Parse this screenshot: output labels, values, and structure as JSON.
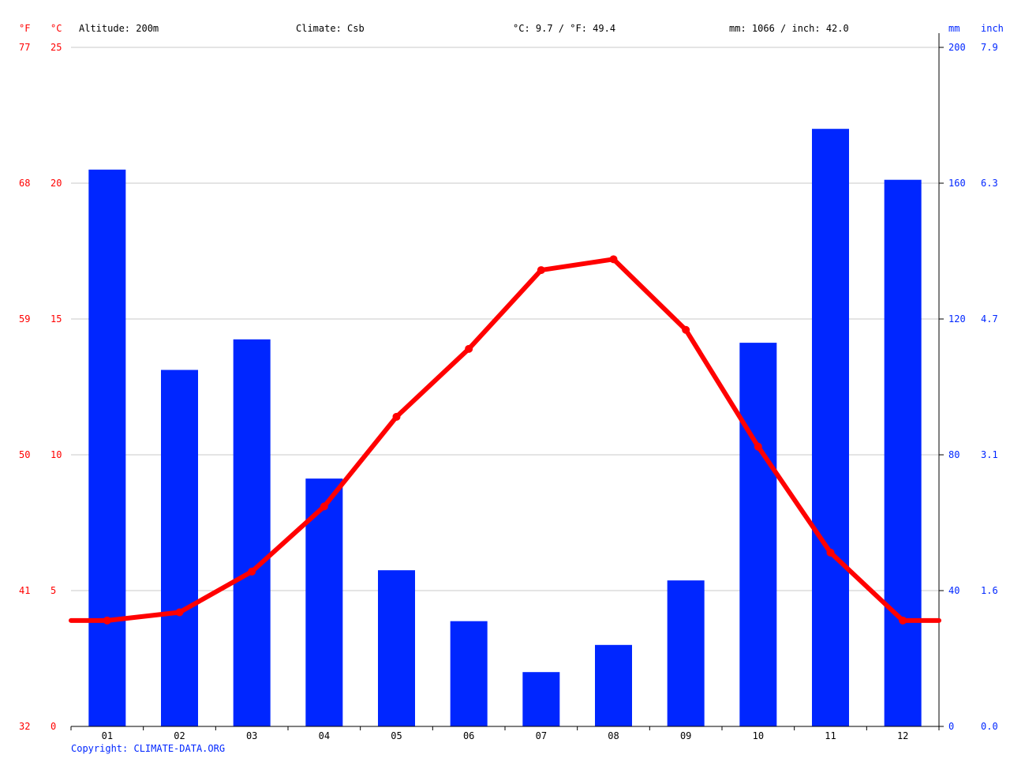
{
  "header": {
    "f_unit": "°F",
    "c_unit": "°C",
    "altitude": "Altitude: 200m",
    "climate": "Climate: Csb",
    "temp_avg": "°C: 9.7 / °F: 49.4",
    "precip_total": "mm: 1066 / inch: 42.0",
    "mm_unit": "mm",
    "inch_unit": "inch"
  },
  "copyright": "Copyright: CLIMATE-DATA.ORG",
  "chart_data": {
    "type": "bar",
    "categories": [
      "01",
      "02",
      "03",
      "04",
      "05",
      "06",
      "07",
      "08",
      "09",
      "10",
      "11",
      "12"
    ],
    "series": [
      {
        "name": "mm",
        "type": "bar",
        "color": "#0026ff",
        "values": [
          164,
          105,
          114,
          73,
          46,
          31,
          16,
          24,
          43,
          113,
          176,
          161
        ]
      },
      {
        "name": "°C",
        "type": "line",
        "color": "#ff0000",
        "values": [
          3.9,
          4.2,
          5.7,
          8.1,
          11.4,
          13.9,
          16.8,
          17.2,
          14.6,
          10.3,
          6.4,
          3.9
        ]
      }
    ],
    "left_axis": {
      "unit_c": "°C",
      "unit_f": "°F",
      "range": [
        0,
        25
      ],
      "ticks_c": [
        "0",
        "5",
        "10",
        "15",
        "20",
        "25"
      ],
      "ticks_f": [
        "32",
        "41",
        "50",
        "59",
        "68",
        "77"
      ]
    },
    "right_axis": {
      "unit_mm": "mm",
      "unit_inch": "inch",
      "range": [
        0,
        200
      ],
      "ticks_mm": [
        "0",
        "40",
        "80",
        "120",
        "160",
        "200"
      ],
      "ticks_inch": [
        "0.0",
        "1.6",
        "3.1",
        "4.7",
        "6.3",
        "7.9"
      ]
    },
    "grid": true
  }
}
